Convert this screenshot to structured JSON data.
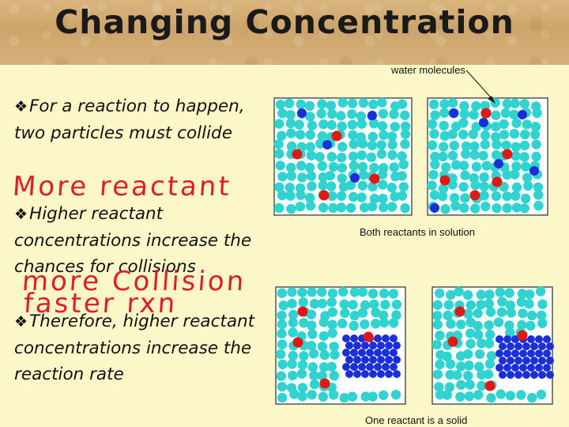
{
  "slide": {
    "title": "Changing Concentration",
    "bullets": [
      {
        "icon": "❖",
        "text": "For a reaction to happen, two particles must collide"
      },
      {
        "icon": "❖",
        "text": "Higher reactant concentrations increase the chances for collisions"
      },
      {
        "icon": "❖",
        "text": "Therefore, higher reactant concentrations increase the reaction rate"
      }
    ],
    "handwritten": [
      "More reactant",
      "more Collision",
      "faster rxn"
    ]
  },
  "figure": {
    "water_label": "water molecules",
    "top_caption": "Both reactants in solution",
    "bottom_caption": "One reactant is a solid",
    "colors": {
      "water": "#31d3d0",
      "red": "#e01a12",
      "blue": "#1a2fd8",
      "box_border": "#555555"
    }
  }
}
